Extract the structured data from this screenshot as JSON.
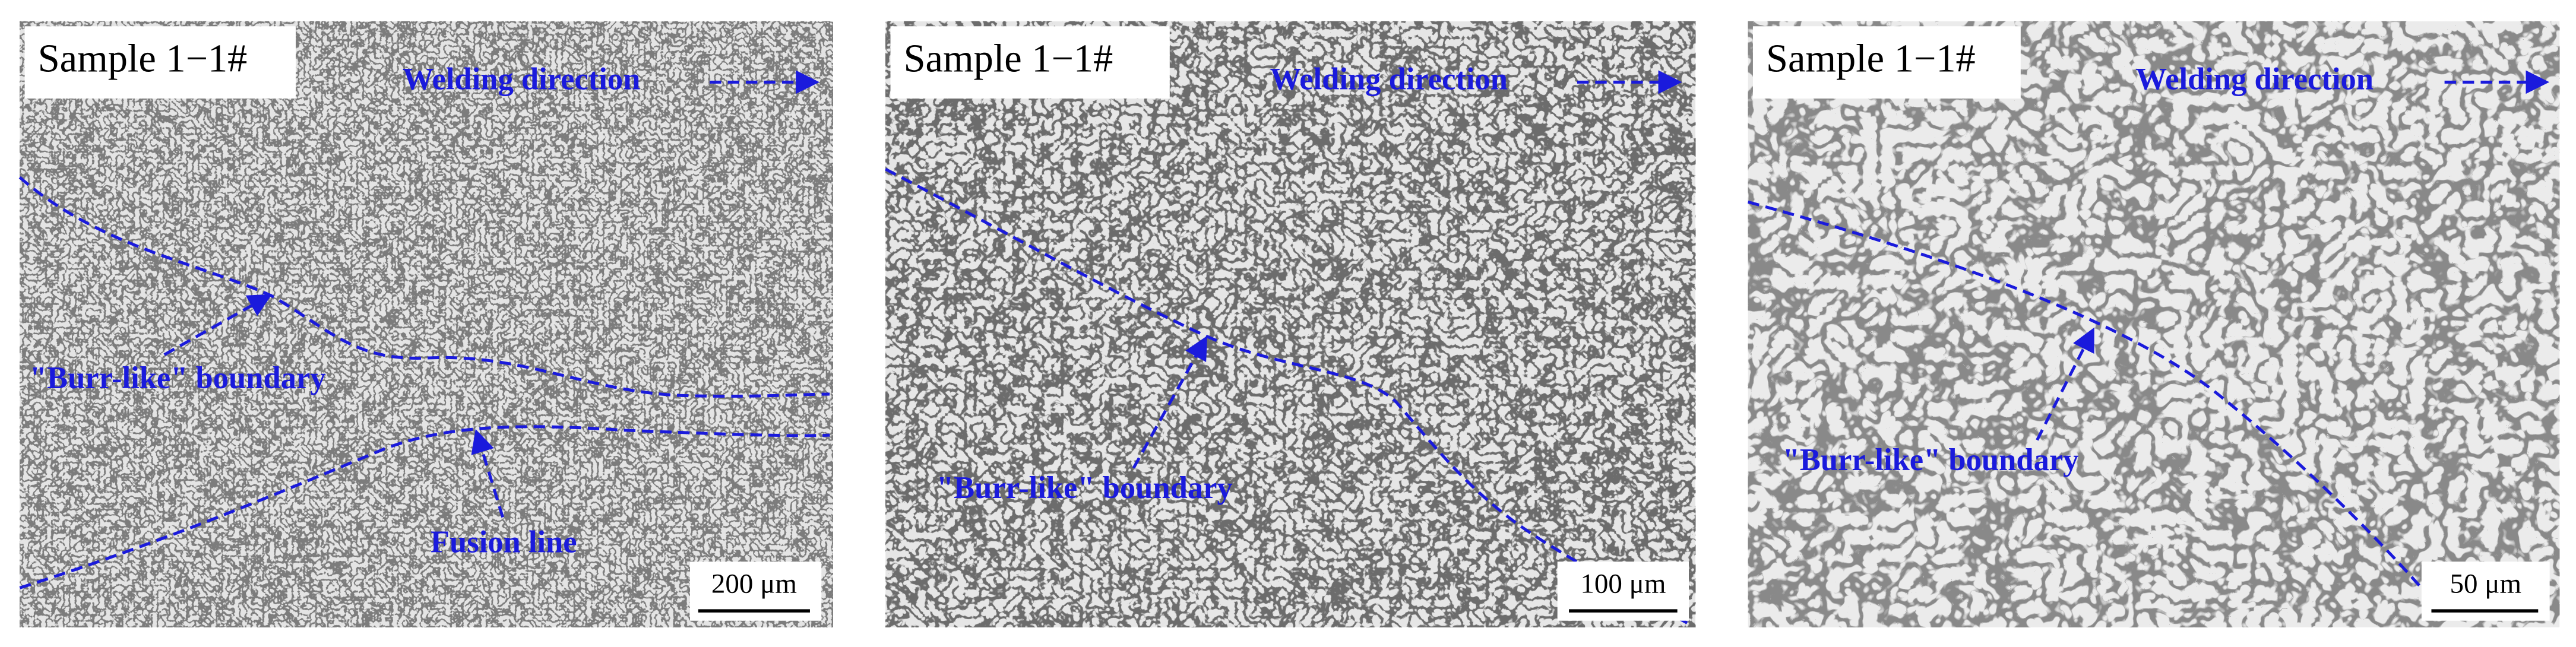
{
  "panels": [
    {
      "sample_label": "Sample 1−1#",
      "direction_label": "Welding direction",
      "annotations": [
        "\"Burr-like\"  boundary",
        "Fusion line"
      ],
      "scale_bar": "200 μm"
    },
    {
      "sample_label": "Sample 1−1#",
      "direction_label": "Welding direction",
      "annotations": [
        "\"Burr-like\" boundary"
      ],
      "scale_bar": "100 μm"
    },
    {
      "sample_label": "Sample 1−1#",
      "direction_label": "Welding direction",
      "annotations": [
        "\"Burr-like\" boundary"
      ],
      "scale_bar": "50 μm"
    }
  ]
}
